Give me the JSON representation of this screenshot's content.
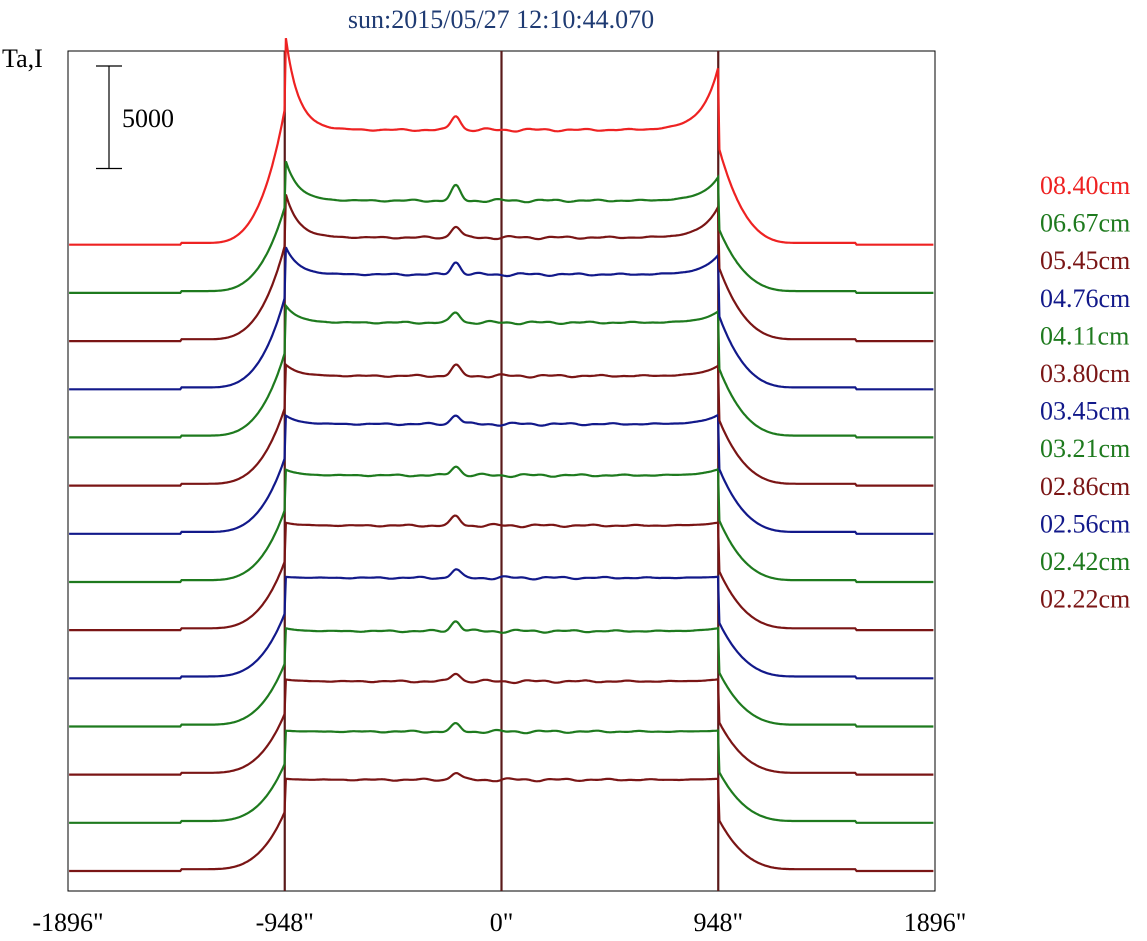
{
  "chart_data": {
    "type": "line",
    "title": "sun:2015/05/27 12:10:44.070",
    "ylabel": "Ta,I",
    "x_ticks": [
      "-1896\"",
      "-948\"",
      "0\"",
      "948\"",
      "1896\""
    ],
    "x_tick_values": [
      -1896,
      -948,
      0,
      948,
      1896
    ],
    "xlim": [
      -1896,
      1896
    ],
    "vlines": [
      -948,
      0,
      948
    ],
    "scale_bar_label": "5000",
    "scale_bar_value": 5000,
    "grid": false,
    "legend_position": "right",
    "stack_offset": 2350,
    "colors": {
      "vline": "#5a1a1a",
      "axis": "#000000",
      "title": "#1f3b73"
    },
    "series": [
      {
        "name": "08.40cm",
        "color": "#ee2222",
        "peak_left": 10500,
        "peak_right": 8650,
        "center": 5600,
        "center_bump": 6300
      },
      {
        "name": "06.67cm",
        "color": "#1e7a1e",
        "peak_left": 6600,
        "peak_right": 5650,
        "center": 4500,
        "center_bump": 5200
      },
      {
        "name": "05.45cm",
        "color": "#7a1515",
        "peak_left": 7350,
        "peak_right": 6550,
        "center": 5050,
        "center_bump": 5600
      },
      {
        "name": "04.76cm",
        "color": "#12198a",
        "peak_left": 7050,
        "peak_right": 6550,
        "center": 5600,
        "center_bump": 6200
      },
      {
        "name": "04.11cm",
        "color": "#1e7a1e",
        "peak_left": 6500,
        "peak_right": 6150,
        "center": 5600,
        "center_bump": 6100
      },
      {
        "name": "03.80cm",
        "color": "#7a1515",
        "peak_left": 5950,
        "peak_right": 5850,
        "center": 5350,
        "center_bump": 5850
      },
      {
        "name": "03.45cm",
        "color": "#12198a",
        "peak_left": 5800,
        "peak_right": 5800,
        "center": 5350,
        "center_bump": 5800
      },
      {
        "name": "03.21cm",
        "color": "#1e7a1e",
        "peak_left": 5500,
        "peak_right": 5500,
        "center": 5200,
        "center_bump": 5650
      },
      {
        "name": "02.86cm",
        "color": "#7a1515",
        "peak_left": 5250,
        "peak_right": 5250,
        "center": 5100,
        "center_bump": 5550
      },
      {
        "name": "02.56cm",
        "color": "#12198a",
        "peak_left": 4950,
        "peak_right": 4950,
        "center": 4900,
        "center_bump": 5300
      },
      {
        "name": "02.42cm",
        "color": "#1e7a1e",
        "peak_left": 4800,
        "peak_right": 4800,
        "center": 4650,
        "center_bump": 5150
      },
      {
        "name": "02.22cm",
        "color": "#7a1515",
        "peak_left": 4650,
        "peak_right": 4650,
        "center": 4550,
        "center_bump": 4950
      }
    ],
    "extra_curves": [
      {
        "color": "#1e7a1e"
      },
      {
        "color": "#7a1515"
      }
    ]
  }
}
